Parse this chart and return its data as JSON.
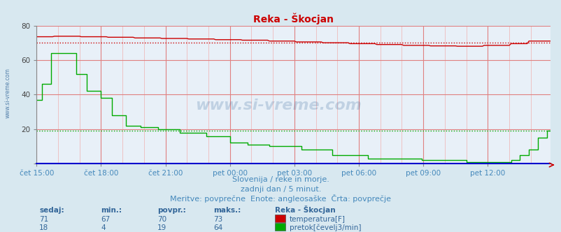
{
  "title": "Reka - Škocjan",
  "bg_color": "#d8e8f0",
  "plot_bg_color": "#e8f0f8",
  "title_color": "#cc0000",
  "text_color": "#4488bb",
  "x_label_color": "#4488bb",
  "subtitle_lines": [
    "Slovenija / reke in morje.",
    "zadnji dan / 5 minut.",
    "Meritve: povprečne  Enote: angleosaške  Črta: povprečje"
  ],
  "x_ticks_labels": [
    "čet 15:00",
    "čet 18:00",
    "čet 21:00",
    "pet 00:00",
    "pet 03:00",
    "pet 06:00",
    "pet 09:00",
    "pet 12:00"
  ],
  "y_ticks": [
    0,
    20,
    40,
    60,
    80
  ],
  "y_lim": [
    0,
    80
  ],
  "n_points": 288,
  "temp_color": "#cc0000",
  "flow_color": "#00aa00",
  "temp_avg": 70,
  "flow_avg": 19,
  "temp_min": 67,
  "temp_max": 73,
  "temp_current": 71,
  "flow_min": 4,
  "flow_max": 64,
  "flow_current": 18,
  "temp_povp": 70,
  "flow_povp": 19,
  "watermark": "www.si-vreme.com",
  "left_label": "www.si-vreme.com",
  "header_color": "#336699",
  "val_color": "#336699"
}
